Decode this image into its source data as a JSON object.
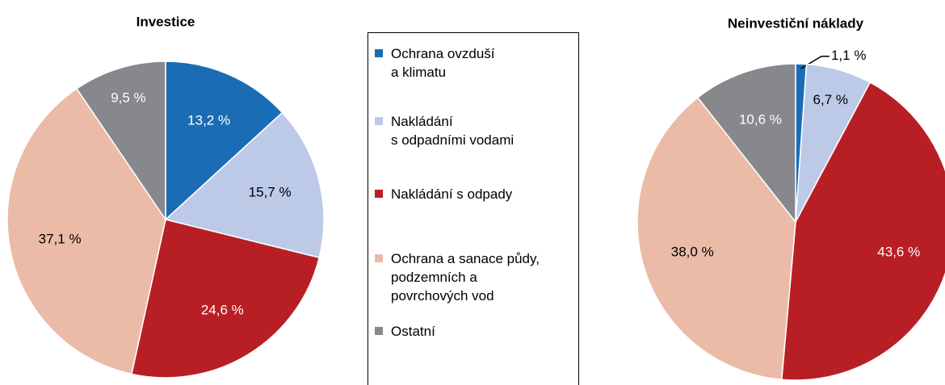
{
  "legend": {
    "categories": [
      "Ochrana ovzduší\na klimatu",
      "Nakládání\ns odpadními vodami",
      "Nakládání s odpady",
      "Ochrana a sanace půdy,\npodzemních a\npovrchových vod",
      "Ostatní"
    ],
    "colors": [
      "#1a6db4",
      "#bccae8",
      "#b81f25",
      "#ebbba8",
      "#86888c"
    ]
  },
  "chart_data": [
    {
      "type": "pie",
      "title": "Investice",
      "values": [
        13.2,
        15.7,
        24.6,
        37.1,
        9.5
      ],
      "value_labels": [
        "13,2 %",
        "15,7 %",
        "24,6 %",
        "37,1 %",
        "9,5 %"
      ]
    },
    {
      "type": "pie",
      "title": "Neinvestiční náklady",
      "values": [
        1.1,
        6.7,
        43.6,
        38.0,
        10.6
      ],
      "value_labels": [
        "1,1 %",
        "6,7 %",
        "43,6 %",
        "38,0 %",
        "10,6 %"
      ]
    }
  ]
}
